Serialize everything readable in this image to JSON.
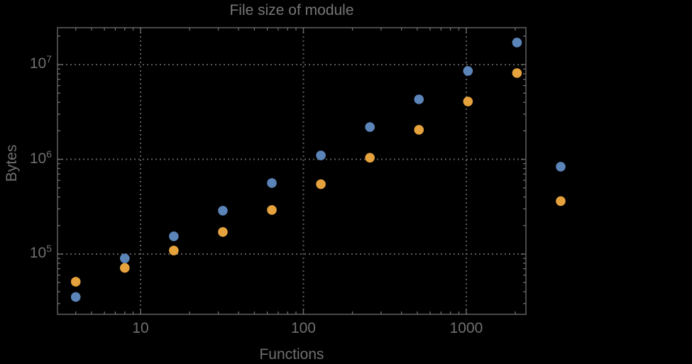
{
  "figure": {
    "background_color": "#000000",
    "title_color": "#767676",
    "label_color": "#6f6f6f",
    "frame_color": "#6e6e6e",
    "grid_color": "#5c5c5c"
  },
  "chart_data": {
    "type": "scatter",
    "title": "File size of module",
    "xlabel": "Functions",
    "ylabel": "Bytes",
    "x_scale": "log",
    "y_scale": "log",
    "xlim": [
      3.09,
      2324
    ],
    "ylim": [
      23100,
      24550000
    ],
    "grid": "dotted lines at major ticks, both axes",
    "legend": "none",
    "x_ticks": [
      10,
      100,
      1000
    ],
    "x_tick_labels": [
      "10",
      "100",
      "1000"
    ],
    "y_ticks": [
      100000,
      1000000,
      10000000
    ],
    "y_tick_base": "10",
    "y_tick_exponents": [
      5,
      6,
      7
    ],
    "x": [
      4,
      8,
      16,
      32,
      64,
      128,
      256,
      512,
      1024,
      2048,
      3800
    ],
    "series": [
      {
        "name": "series-blue",
        "color": "#5b84b8",
        "values": [
          35200,
          90000,
          154000,
          287000,
          562000,
          1100000,
          2190000,
          4300000,
          8570000,
          17100000,
          836000
        ]
      },
      {
        "name": "series-orange",
        "color": "#e6a23c",
        "values": [
          51000,
          71400,
          109000,
          171000,
          292000,
          547000,
          1040000,
          2050000,
          4080000,
          8140000,
          362000
        ]
      }
    ]
  }
}
